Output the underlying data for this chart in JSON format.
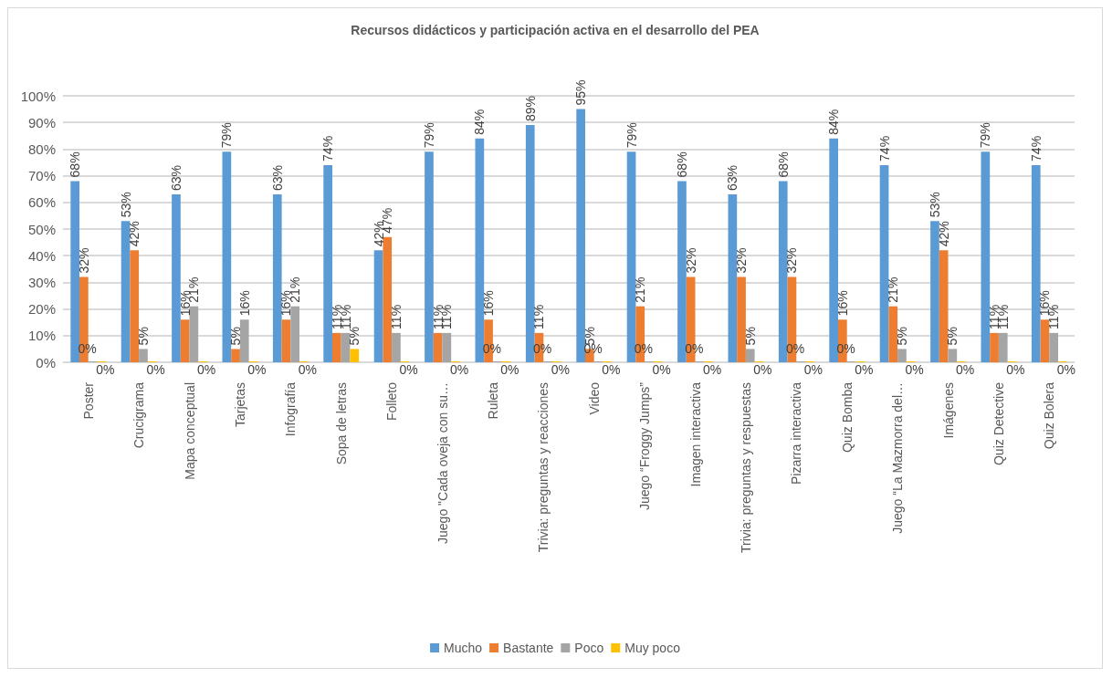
{
  "chart_data": {
    "type": "bar",
    "title": "Recursos didácticos y participación activa en el desarrollo del PEA",
    "categories": [
      "Poster",
      "Crucigrama",
      "Mapa conceptual",
      "Tarjetas",
      "Infografía",
      "Sopa de letras",
      "Folleto",
      "Juego \"Cada oveja con su…",
      "Ruleta",
      "Trivia: preguntas y reacciones",
      "Video",
      "Juego “Froggy Jumps”",
      "Imagen interactiva",
      "Trivia: preguntas y respuestas",
      "Pizarra interactiva",
      "Quiz Bomba",
      "Juego “La Mazmorra del…",
      "Imágenes",
      "Quiz Detective",
      "Quiz Bolera"
    ],
    "series": [
      {
        "name": "Mucho",
        "color": "#5b9bd5",
        "values": [
          68,
          53,
          63,
          79,
          63,
          74,
          42,
          79,
          84,
          89,
          95,
          79,
          68,
          63,
          68,
          84,
          74,
          53,
          79,
          74
        ],
        "value_labels": [
          "68%",
          "53%",
          "63%",
          "79%",
          "63%",
          "74%",
          "42%",
          "79%",
          "84%",
          "89%",
          "95%",
          "79%",
          "68%",
          "63%",
          "68%",
          "84%",
          "74%",
          "53%",
          "79%",
          "74%"
        ]
      },
      {
        "name": "Bastante",
        "color": "#ed7d31",
        "values": [
          32,
          42,
          16,
          5,
          16,
          11,
          47,
          11,
          16,
          11,
          5,
          21,
          32,
          32,
          32,
          16,
          21,
          42,
          11,
          16
        ],
        "value_labels": [
          "32%",
          "42%",
          "16%",
          "5%",
          "16%",
          "11%",
          "47%",
          "11%",
          "16%",
          "11%",
          "5%",
          "21%",
          "32%",
          "32%",
          "32%",
          "16%",
          "21%",
          "42%",
          "11%",
          "16%"
        ]
      },
      {
        "name": "Poco",
        "color": "#a5a5a5",
        "values": [
          0,
          5,
          21,
          16,
          21,
          11,
          11,
          11,
          0,
          0,
          0,
          0,
          0,
          5,
          0,
          0,
          5,
          5,
          11,
          11
        ],
        "value_labels": [
          "0%",
          "5%",
          "21%",
          "16%",
          "21%",
          "11%",
          "11%",
          "11%",
          "0%",
          "0%",
          "0%",
          "0%",
          "0%",
          "5%",
          "0%",
          "0%",
          "5%",
          "5%",
          "11%",
          "11%"
        ]
      },
      {
        "name": "Muy poco",
        "color": "#ffc000",
        "values": [
          0,
          0,
          0,
          0,
          0,
          5,
          0,
          0,
          0,
          0,
          0,
          0,
          0,
          0,
          0,
          0,
          0,
          0,
          0,
          0
        ],
        "value_labels": [
          "0%",
          "0%",
          "0%",
          "0%",
          "0%",
          "5%",
          "0%",
          "0%",
          "0%",
          "0%",
          "0%",
          "0%",
          "0%",
          "0%",
          "0%",
          "0%",
          "0%",
          "0%",
          "0%",
          "0%"
        ]
      }
    ],
    "ylim": [
      0,
      100
    ],
    "yticks": [
      {
        "value": 0,
        "label": "0%"
      },
      {
        "value": 10,
        "label": "10%"
      },
      {
        "value": 20,
        "label": "20%"
      },
      {
        "value": 30,
        "label": "30%"
      },
      {
        "value": 40,
        "label": "40%"
      },
      {
        "value": 50,
        "label": "50%"
      },
      {
        "value": 60,
        "label": "60%"
      },
      {
        "value": 70,
        "label": "70%"
      },
      {
        "value": 80,
        "label": "80%"
      },
      {
        "value": 90,
        "label": "90%"
      },
      {
        "value": 100,
        "label": "100%"
      }
    ],
    "grid": "y",
    "legend": "bottom"
  }
}
